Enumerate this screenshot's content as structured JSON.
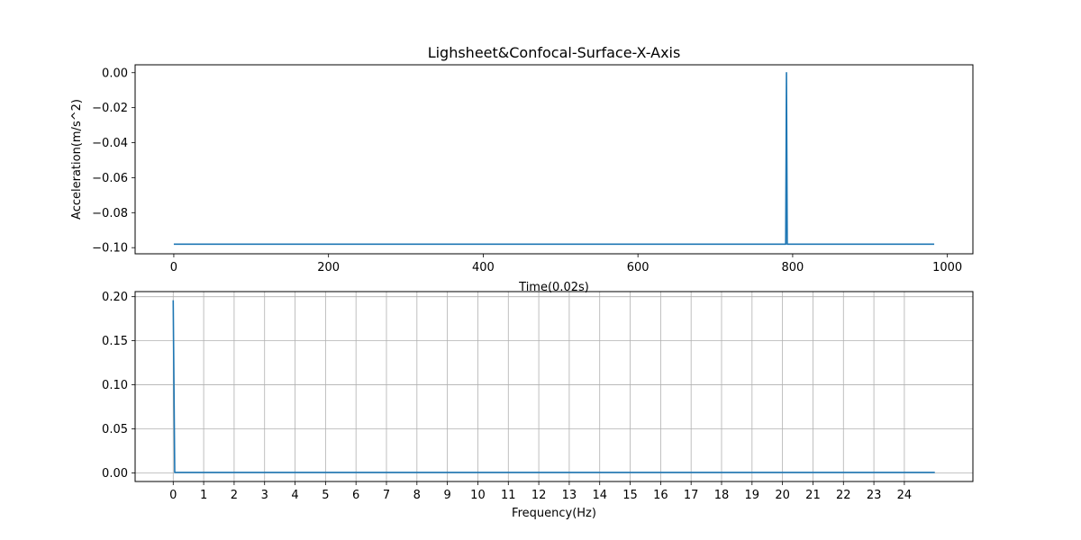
{
  "chart_data": [
    {
      "type": "line",
      "title": "Lighsheet&Confocal-Surface-X-Axis",
      "xlabel": "Time(0.02s)",
      "ylabel": "Acceleration(m/s^2)",
      "xlim": [
        -50,
        1033
      ],
      "ylim": [
        -0.1035,
        0.0045
      ],
      "xticks": [
        0,
        200,
        400,
        600,
        800,
        1000
      ],
      "xtick_labels": [
        "0",
        "200",
        "400",
        "600",
        "800",
        "1000"
      ],
      "yticks": [
        0.0,
        -0.02,
        -0.04,
        -0.06,
        -0.08,
        -0.1
      ],
      "ytick_labels": [
        "0.00",
        "−0.02",
        "−0.04",
        "−0.06",
        "−0.08",
        "−0.10"
      ],
      "grid": false,
      "color": "#1f77b4",
      "series": [
        {
          "x": [
            0,
            791,
            792,
            793,
            983
          ],
          "y": [
            -0.098,
            -0.098,
            0.0,
            -0.098,
            -0.098
          ]
        }
      ]
    },
    {
      "type": "line",
      "title": "",
      "xlabel": "Frequency(Hz)",
      "ylabel": "",
      "xlim": [
        -1.25,
        26.25
      ],
      "ylim": [
        -0.0098,
        0.2058
      ],
      "xticks": [
        0,
        1,
        2,
        3,
        4,
        5,
        6,
        7,
        8,
        9,
        10,
        11,
        12,
        13,
        14,
        15,
        16,
        17,
        18,
        19,
        20,
        21,
        22,
        23,
        24
      ],
      "xtick_labels": [
        "0",
        "1",
        "2",
        "3",
        "4",
        "5",
        "6",
        "7",
        "8",
        "9",
        "10",
        "11",
        "12",
        "13",
        "14",
        "15",
        "16",
        "17",
        "18",
        "19",
        "20",
        "21",
        "22",
        "23",
        "24"
      ],
      "yticks": [
        0.0,
        0.05,
        0.1,
        0.15,
        0.2
      ],
      "ytick_labels": [
        "0.00",
        "0.05",
        "0.10",
        "0.15",
        "0.20"
      ],
      "grid": true,
      "color": "#1f77b4",
      "series": [
        {
          "x": [
            0,
            0.05,
            25
          ],
          "y": [
            0.196,
            0.0005,
            0.0005
          ]
        }
      ]
    }
  ]
}
